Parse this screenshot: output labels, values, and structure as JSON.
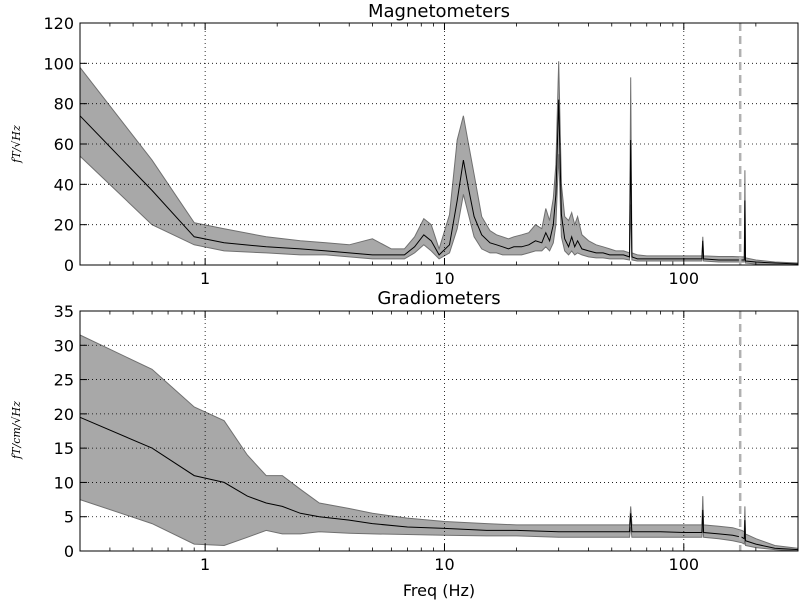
{
  "chart_data": [
    {
      "type": "area",
      "title": "Magnetometers",
      "ylabel": "fT/√Hz",
      "xlabel": "",
      "x_scale": "log",
      "xlim": [
        0.3,
        300
      ],
      "ylim": [
        0,
        120
      ],
      "grid": true,
      "x_ticks": [
        {
          "value": 1,
          "label": "1"
        },
        {
          "value": 10,
          "label": "10"
        },
        {
          "value": 100,
          "label": "100"
        }
      ],
      "y_ticks": [
        {
          "value": 0,
          "label": "0"
        },
        {
          "value": 20,
          "label": "20"
        },
        {
          "value": 40,
          "label": "40"
        },
        {
          "value": 60,
          "label": "60"
        },
        {
          "value": 80,
          "label": "80"
        },
        {
          "value": 100,
          "label": "100"
        },
        {
          "value": 120,
          "label": "120"
        }
      ],
      "vline_x": 172,
      "band_color": "#a8a8a8",
      "line_color": "#000000",
      "x": [
        0.3,
        0.6,
        0.9,
        1.2,
        1.8,
        2.5,
        3.2,
        4.0,
        5.0,
        6.0,
        6.8,
        7.5,
        8.2,
        8.8,
        9.5,
        10.5,
        11.3,
        12.0,
        12.6,
        13.3,
        14.3,
        15.5,
        16.5,
        17.5,
        18.5,
        19.5,
        21.0,
        22.5,
        24.0,
        25.5,
        26.5,
        27.5,
        28.5,
        29.2,
        30.0,
        30.8,
        31.8,
        33.0,
        34.0,
        35.0,
        36.0,
        37.5,
        40.0,
        43.0,
        46.0,
        49.0,
        52.0,
        56.0,
        59.3,
        60.0,
        60.7,
        64.0,
        70.0,
        80.0,
        90.0,
        100.0,
        110.0,
        119.0,
        120.0,
        121.0,
        140.0,
        160.0,
        175.0,
        179.0,
        180.0,
        181.0,
        200.0,
        240.0,
        300.0
      ],
      "mean": [
        74,
        37,
        14,
        11,
        9,
        8,
        7,
        6,
        5,
        5,
        5,
        9,
        15,
        12,
        5,
        10,
        32,
        52,
        38,
        24,
        15,
        11,
        10,
        9,
        8,
        9,
        9,
        10,
        12,
        11,
        16,
        12,
        20,
        35,
        82,
        25,
        13,
        9,
        14,
        9,
        12,
        8,
        7,
        6,
        6,
        5,
        5,
        5,
        4,
        62,
        4,
        3,
        3,
        3,
        3,
        3,
        3,
        3,
        12,
        3,
        2.5,
        2.5,
        2.5,
        2.5,
        32,
        2,
        1.5,
        1,
        0.5
      ],
      "upper": [
        98,
        52,
        21,
        18,
        14,
        12,
        11,
        10,
        13,
        8,
        8,
        14,
        23,
        20,
        8,
        25,
        62,
        74,
        60,
        45,
        24,
        17,
        15,
        14,
        13,
        14,
        15,
        16,
        20,
        18,
        28,
        22,
        33,
        50,
        101,
        40,
        24,
        22,
        26,
        20,
        24,
        15,
        12,
        10,
        9,
        8,
        7,
        7,
        6,
        93,
        6,
        5,
        4.5,
        4.5,
        4.5,
        4.5,
        4.5,
        4.5,
        14,
        4.5,
        4.2,
        4.2,
        4.0,
        4.0,
        47,
        3.5,
        2.5,
        1.5,
        1
      ],
      "lower": [
        54,
        20,
        10,
        7,
        6,
        5,
        5,
        4,
        3,
        3,
        3,
        6,
        10,
        7,
        3,
        6,
        18,
        35,
        25,
        14,
        8,
        6,
        6,
        5,
        5,
        5,
        5,
        6,
        7,
        7,
        9,
        7,
        11,
        20,
        55,
        14,
        7,
        5,
        7,
        5,
        6,
        5,
        4,
        3.5,
        3.5,
        3,
        3,
        3,
        2.5,
        30,
        2.5,
        2,
        2,
        2,
        2,
        2,
        2,
        2,
        5,
        2,
        1.5,
        1.5,
        1.5,
        1.5,
        15,
        1,
        0.5,
        0.3,
        0
      ]
    },
    {
      "type": "area",
      "title": "Gradiometers",
      "ylabel": "fT/cm/√Hz",
      "xlabel": "Freq (Hz)",
      "x_scale": "log",
      "xlim": [
        0.3,
        300
      ],
      "ylim": [
        0,
        35
      ],
      "grid": true,
      "x_ticks": [
        {
          "value": 1,
          "label": "1"
        },
        {
          "value": 10,
          "label": "10"
        },
        {
          "value": 100,
          "label": "100"
        }
      ],
      "y_ticks": [
        {
          "value": 0,
          "label": "0"
        },
        {
          "value": 5,
          "label": "5"
        },
        {
          "value": 10,
          "label": "10"
        },
        {
          "value": 15,
          "label": "15"
        },
        {
          "value": 20,
          "label": "20"
        },
        {
          "value": 25,
          "label": "25"
        },
        {
          "value": 30,
          "label": "30"
        },
        {
          "value": 35,
          "label": "35"
        }
      ],
      "vline_x": 172,
      "band_color": "#a8a8a8",
      "line_color": "#000000",
      "x": [
        0.3,
        0.6,
        0.9,
        1.2,
        1.5,
        1.8,
        2.1,
        2.5,
        3.0,
        4.0,
        5.0,
        7.0,
        10.0,
        15.0,
        20.0,
        30.0,
        40.0,
        50.0,
        59.3,
        60.0,
        60.7,
        80.0,
        100.0,
        110.0,
        119.0,
        120.0,
        121.0,
        140.0,
        160.0,
        175.0,
        179.0,
        180.0,
        181.0,
        200.0,
        240.0,
        300.0
      ],
      "mean": [
        19.5,
        15,
        11,
        10,
        8,
        7,
        6.5,
        5.5,
        5,
        4.5,
        4,
        3.5,
        3.3,
        3,
        3,
        2.8,
        2.8,
        2.8,
        2.8,
        5.5,
        2.8,
        2.8,
        2.7,
        2.7,
        2.7,
        6,
        2.7,
        2.5,
        2.3,
        2,
        1.8,
        4.5,
        1.5,
        1,
        0.4,
        0.2
      ],
      "upper": [
        31.5,
        26.5,
        21,
        19,
        14,
        11,
        11,
        9,
        7,
        6.2,
        5.5,
        4.8,
        4.3,
        4,
        3.8,
        3.8,
        3.8,
        3.8,
        3.8,
        6.5,
        3.8,
        3.8,
        3.8,
        3.8,
        3.8,
        8,
        3.8,
        3.6,
        3.4,
        3,
        2.8,
        6.5,
        2.5,
        1.8,
        0.8,
        0.4
      ],
      "lower": [
        7.5,
        4,
        1,
        0.8,
        2,
        3,
        2.5,
        2.5,
        2.8,
        2.6,
        2.5,
        2.4,
        2.3,
        2.2,
        2.2,
        2,
        2,
        2,
        2,
        3.5,
        2,
        2,
        2,
        2,
        2,
        4,
        2,
        1.8,
        1.5,
        1.2,
        1.0,
        2.5,
        0.8,
        0.5,
        0.2,
        0
      ]
    }
  ]
}
